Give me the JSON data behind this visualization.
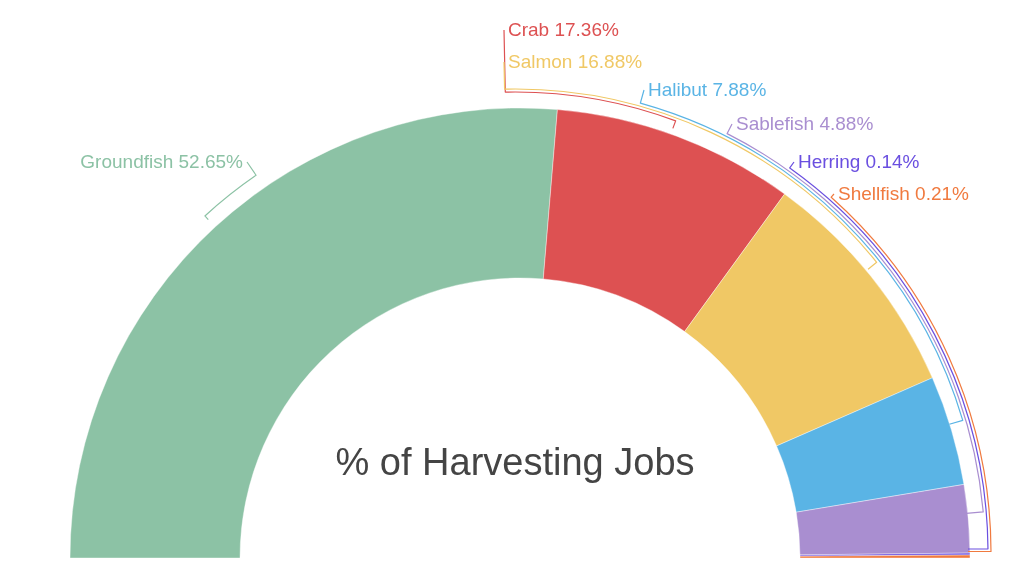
{
  "chart_data": {
    "type": "donut",
    "title": "% of Harvesting Jobs",
    "categories": [
      "Groundfish",
      "Crab",
      "Salmon",
      "Halibut",
      "Sablefish",
      "Herring",
      "Shellfish"
    ],
    "values": [
      52.65,
      17.36,
      16.88,
      7.88,
      4.88,
      0.14,
      0.21
    ],
    "value_labels": [
      "52.65%",
      "17.36%",
      "16.88%",
      "7.88%",
      "4.88%",
      "0.14%",
      "0.21%"
    ],
    "colors": [
      "#8cc2a5",
      "#dd5152",
      "#f0c865",
      "#5ab4e5",
      "#a98ed0",
      "#6a4fe0",
      "#f07a3f"
    ],
    "legend": false
  }
}
